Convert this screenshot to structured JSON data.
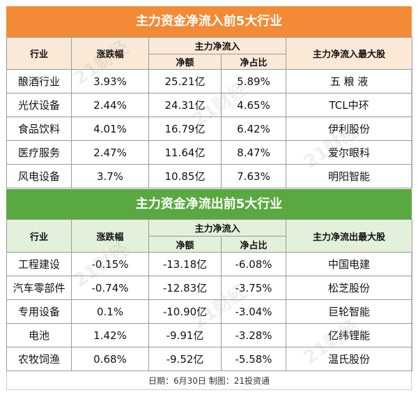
{
  "inflow": {
    "title": "主力资金净流入前5大行业",
    "headers": {
      "industry": "行业",
      "change": "涨跌幅",
      "netflow": "主力净流入",
      "amount": "净额",
      "ratio": "净占比",
      "top_stock": "主力净流入最大股"
    },
    "rows": [
      {
        "industry": "酿酒行业",
        "change": "3.93%",
        "amount": "25.21亿",
        "ratio": "5.89%",
        "stock": "五 粮 液"
      },
      {
        "industry": "光伏设备",
        "change": "2.44%",
        "amount": "24.31亿",
        "ratio": "4.65%",
        "stock": "TCL中环"
      },
      {
        "industry": "食品饮料",
        "change": "4.01%",
        "amount": "16.79亿",
        "ratio": "6.42%",
        "stock": "伊利股份"
      },
      {
        "industry": "医疗服务",
        "change": "2.47%",
        "amount": "11.64亿",
        "ratio": "8.47%",
        "stock": "爱尔眼科"
      },
      {
        "industry": "风电设备",
        "change": "3.7%",
        "amount": "10.85亿",
        "ratio": "7.63%",
        "stock": "明阳智能"
      }
    ]
  },
  "outflow": {
    "title": "主力资金净流出前5大行业",
    "headers": {
      "industry": "行业",
      "change": "涨跌幅",
      "netflow": "主力净流入",
      "amount": "净额",
      "ratio": "净占比",
      "top_stock": "主力净流出最大股"
    },
    "rows": [
      {
        "industry": "工程建设",
        "change": "-0.15%",
        "amount": "-13.18亿",
        "ratio": "-6.08%",
        "stock": "中国电建"
      },
      {
        "industry": "汽车零部件",
        "change": "-0.74%",
        "amount": "-12.83亿",
        "ratio": "-3.75%",
        "stock": "松芝股份"
      },
      {
        "industry": "专用设备",
        "change": "0.1%",
        "amount": "-10.90亿",
        "ratio": "-3.04%",
        "stock": "巨轮智能"
      },
      {
        "industry": "电池",
        "change": "1.42%",
        "amount": "-9.91亿",
        "ratio": "-3.28%",
        "stock": "亿纬锂能"
      },
      {
        "industry": "农牧饲渔",
        "change": "0.68%",
        "amount": "-9.52亿",
        "ratio": "-5.58%",
        "stock": "温氏股份"
      }
    ]
  },
  "footer": "日期：6月30日 制图：21投资通",
  "watermark": "21财经",
  "colors": {
    "inflow_banner": "#f28a36",
    "outflow_banner": "#59a940",
    "inflow_header": "#fbe9d7",
    "outflow_header": "#e3f0da"
  }
}
